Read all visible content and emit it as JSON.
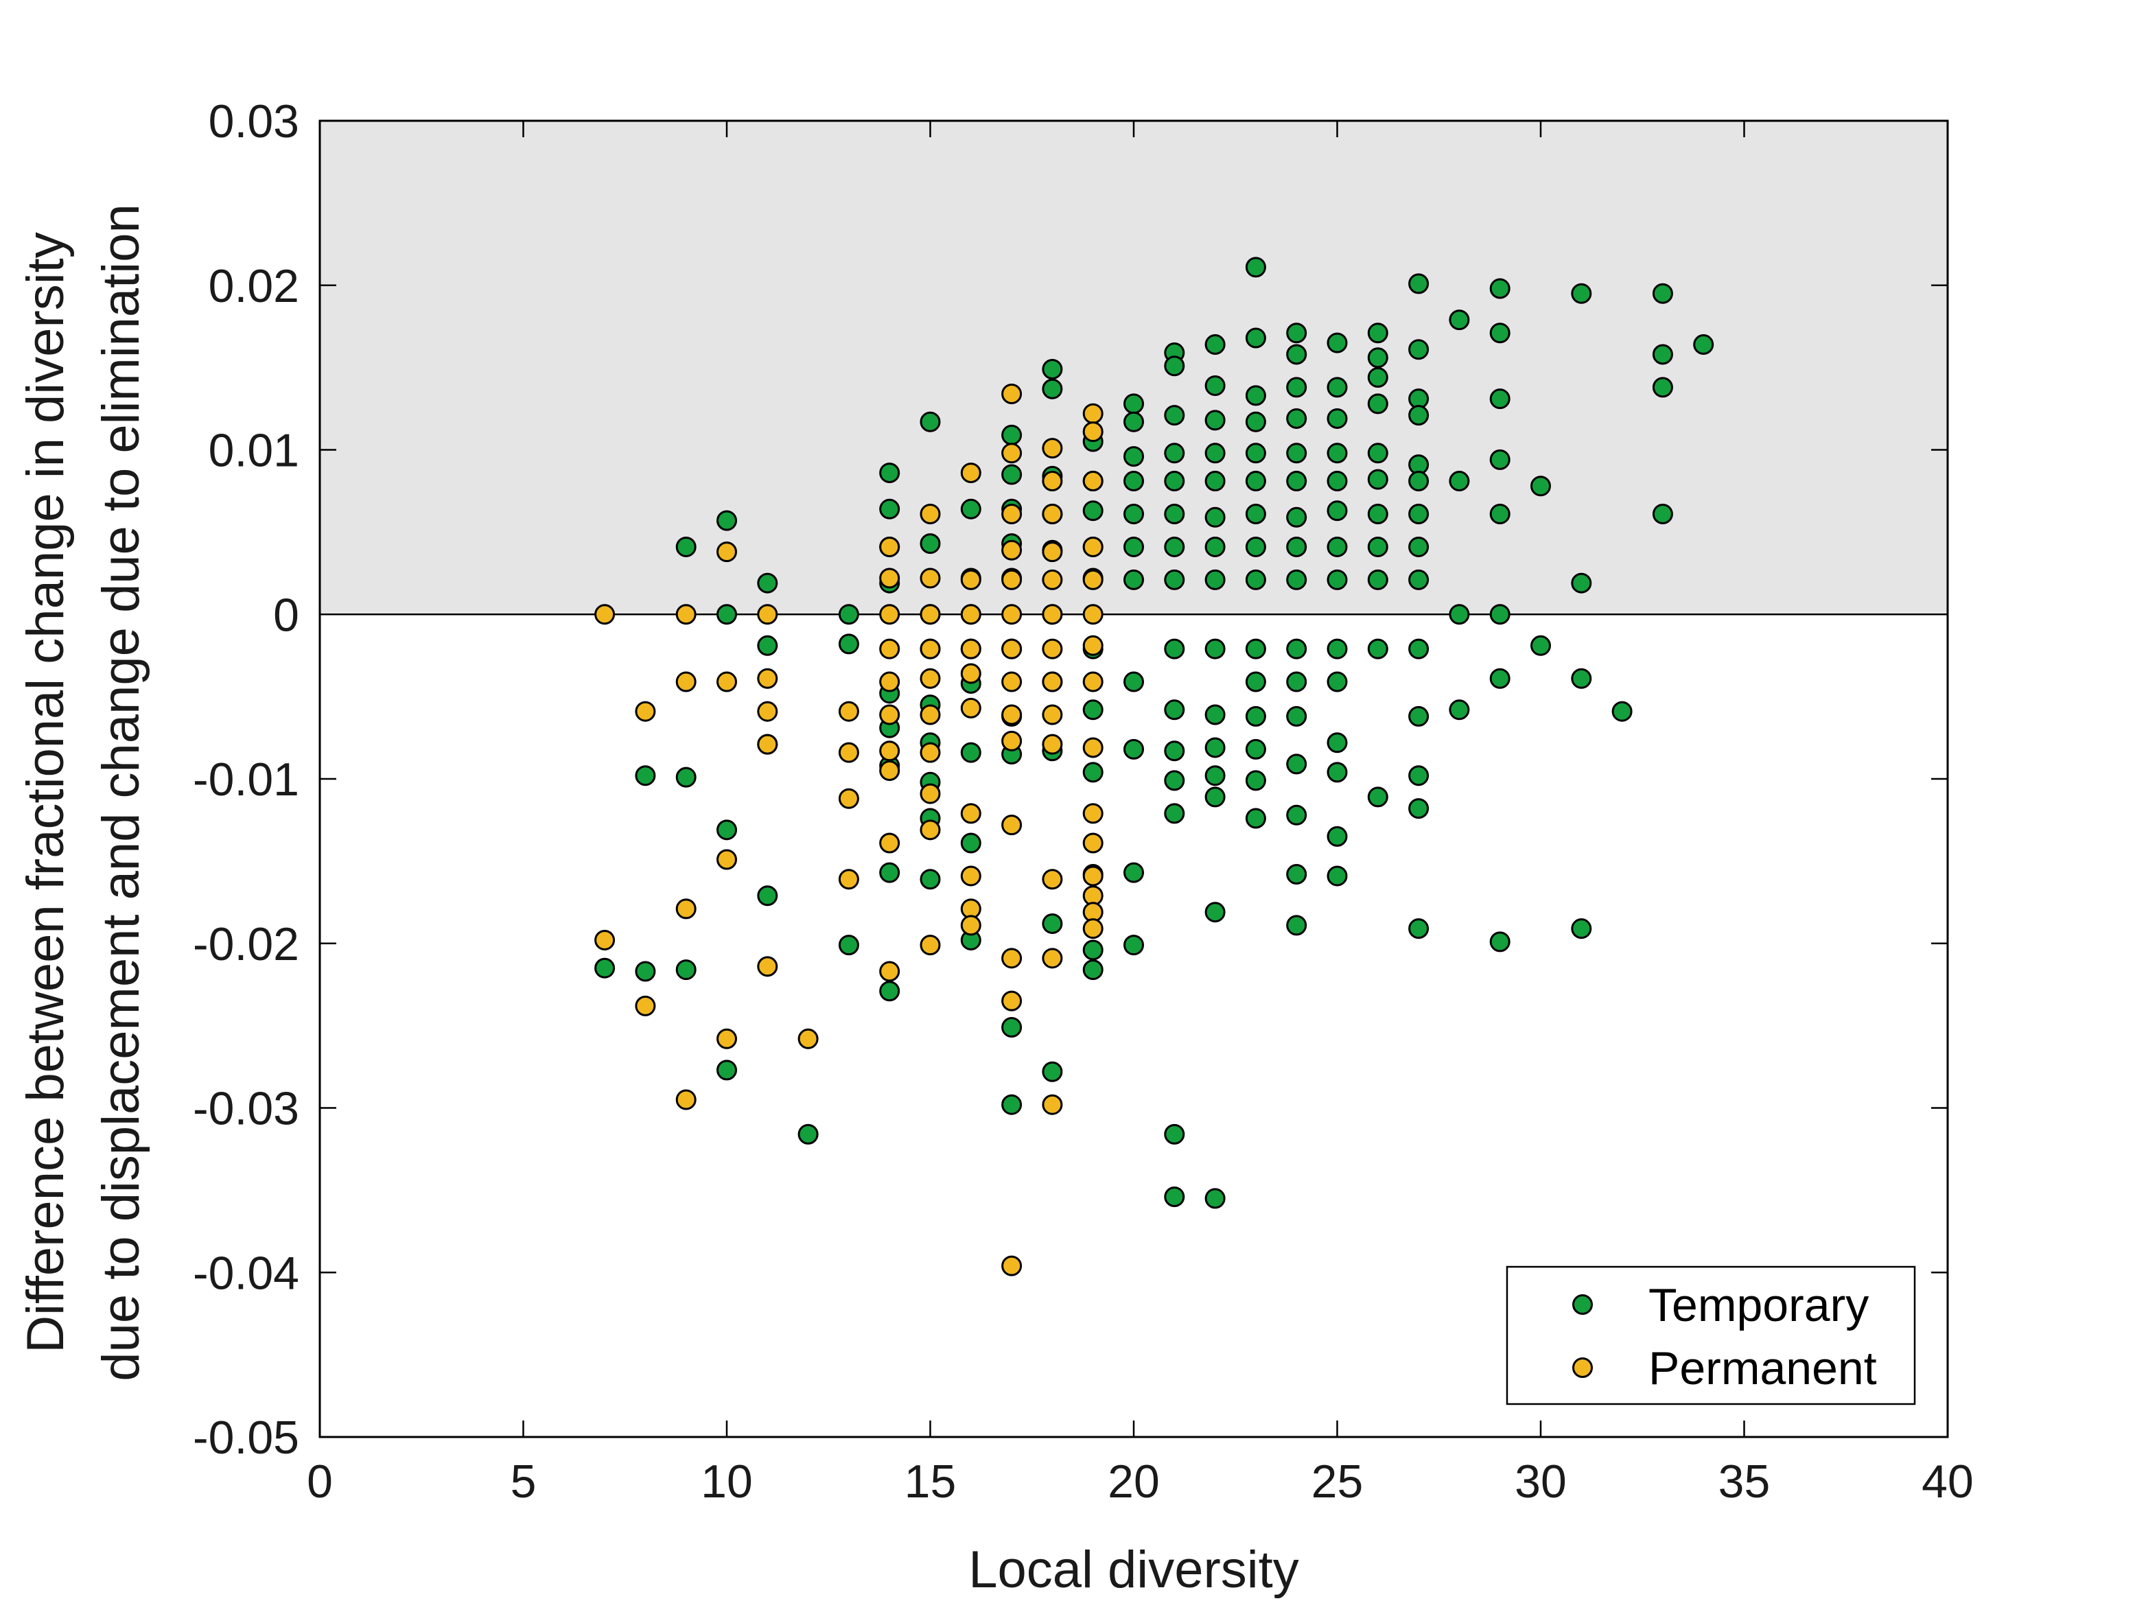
{
  "chart_data": {
    "type": "scatter",
    "title": "",
    "xlabel": "Local diversity",
    "ylabel_lines": [
      "Difference between fractional change in diversity",
      "due to displacement and change due to elimination"
    ],
    "xlim": [
      0,
      40
    ],
    "ylim": [
      -0.05,
      0.03
    ],
    "xticks": [
      0,
      5,
      10,
      15,
      20,
      25,
      30,
      35,
      40
    ],
    "xtick_labels": [
      "0",
      "5",
      "10",
      "15",
      "20",
      "25",
      "30",
      "35",
      "40"
    ],
    "yticks": [
      -0.05,
      -0.04,
      -0.03,
      -0.02,
      -0.01,
      0,
      0.01,
      0.02,
      0.03
    ],
    "ytick_labels": [
      "-0.05",
      "-0.04",
      "-0.03",
      "-0.02",
      "-0.01",
      "0",
      "0.01",
      "0.02",
      "0.03"
    ],
    "shaded_region": {
      "y_from": 0,
      "y_to": 0.03,
      "color": "#e5e5e5"
    },
    "reference_line": {
      "y": 0
    },
    "legend_position": "bottom-right",
    "series": [
      {
        "name": "Temporary",
        "color": "#13a03c",
        "points": [
          [
            7,
            -0.0215
          ],
          [
            8,
            -0.0098
          ],
          [
            8,
            -0.0217
          ],
          [
            9,
            0.0041
          ],
          [
            9,
            -0.0099
          ],
          [
            9,
            -0.0216
          ],
          [
            10,
            0.0057
          ],
          [
            10,
            0.0
          ],
          [
            10,
            -0.0131
          ],
          [
            10,
            -0.0277
          ],
          [
            11,
            0.0019
          ],
          [
            11,
            -0.0019
          ],
          [
            11,
            -0.0079
          ],
          [
            11,
            -0.0171
          ],
          [
            12,
            -0.0316
          ],
          [
            13,
            0.0
          ],
          [
            13,
            -0.0018
          ],
          [
            13,
            -0.0201
          ],
          [
            14,
            0.0086
          ],
          [
            14,
            0.0064
          ],
          [
            14,
            0.0041
          ],
          [
            14,
            0.0019
          ],
          [
            14,
            -0.0048
          ],
          [
            14,
            -0.0069
          ],
          [
            14,
            -0.0092
          ],
          [
            14,
            -0.0157
          ],
          [
            14,
            -0.0229
          ],
          [
            15,
            0.0117
          ],
          [
            15,
            0.0043
          ],
          [
            15,
            0.0
          ],
          [
            15,
            -0.0021
          ],
          [
            15,
            -0.0055
          ],
          [
            15,
            -0.0078
          ],
          [
            15,
            -0.0102
          ],
          [
            15,
            -0.0124
          ],
          [
            15,
            -0.0161
          ],
          [
            16,
            0.0064
          ],
          [
            16,
            0.0022
          ],
          [
            16,
            0.0
          ],
          [
            16,
            -0.0021
          ],
          [
            16,
            -0.0042
          ],
          [
            16,
            -0.0084
          ],
          [
            16,
            -0.0139
          ],
          [
            16,
            -0.0198
          ],
          [
            17,
            0.0109
          ],
          [
            17,
            0.0085
          ],
          [
            17,
            0.0064
          ],
          [
            17,
            0.0043
          ],
          [
            17,
            0.0022
          ],
          [
            17,
            -0.0021
          ],
          [
            17,
            -0.0062
          ],
          [
            17,
            -0.0085
          ],
          [
            17,
            -0.0251
          ],
          [
            17,
            -0.0298
          ],
          [
            18,
            0.0149
          ],
          [
            18,
            0.0137
          ],
          [
            18,
            0.0084
          ],
          [
            18,
            0.0061
          ],
          [
            18,
            0.0039
          ],
          [
            18,
            0.0
          ],
          [
            18,
            -0.0041
          ],
          [
            18,
            -0.0083
          ],
          [
            18,
            -0.0188
          ],
          [
            18,
            -0.0278
          ],
          [
            19,
            0.0105
          ],
          [
            19,
            0.0081
          ],
          [
            19,
            0.0063
          ],
          [
            19,
            0.0041
          ],
          [
            19,
            0.0022
          ],
          [
            19,
            -0.0021
          ],
          [
            19,
            -0.0058
          ],
          [
            19,
            -0.0096
          ],
          [
            19,
            -0.0158
          ],
          [
            19,
            -0.0204
          ],
          [
            19,
            -0.0216
          ],
          [
            20,
            0.0128
          ],
          [
            20,
            0.0117
          ],
          [
            20,
            0.0096
          ],
          [
            20,
            0.0081
          ],
          [
            20,
            0.0061
          ],
          [
            20,
            0.0041
          ],
          [
            20,
            0.0021
          ],
          [
            20,
            -0.0041
          ],
          [
            20,
            -0.0082
          ],
          [
            20,
            -0.0157
          ],
          [
            20,
            -0.0201
          ],
          [
            21,
            0.0159
          ],
          [
            21,
            0.0151
          ],
          [
            21,
            0.0121
          ],
          [
            21,
            0.0098
          ],
          [
            21,
            0.0081
          ],
          [
            21,
            0.0061
          ],
          [
            21,
            0.0041
          ],
          [
            21,
            0.0021
          ],
          [
            21,
            -0.0021
          ],
          [
            21,
            -0.0058
          ],
          [
            21,
            -0.0083
          ],
          [
            21,
            -0.0101
          ],
          [
            21,
            -0.0121
          ],
          [
            21,
            -0.0316
          ],
          [
            21,
            -0.0354
          ],
          [
            22,
            0.0164
          ],
          [
            22,
            0.0139
          ],
          [
            22,
            0.0118
          ],
          [
            22,
            0.0098
          ],
          [
            22,
            0.0081
          ],
          [
            22,
            0.0059
          ],
          [
            22,
            0.0041
          ],
          [
            22,
            0.0021
          ],
          [
            22,
            -0.0021
          ],
          [
            22,
            -0.0061
          ],
          [
            22,
            -0.0081
          ],
          [
            22,
            -0.0098
          ],
          [
            22,
            -0.0111
          ],
          [
            22,
            -0.0181
          ],
          [
            22,
            -0.0355
          ],
          [
            23,
            0.0211
          ],
          [
            23,
            0.0168
          ],
          [
            23,
            0.0133
          ],
          [
            23,
            0.0117
          ],
          [
            23,
            0.0098
          ],
          [
            23,
            0.0081
          ],
          [
            23,
            0.0061
          ],
          [
            23,
            0.0041
          ],
          [
            23,
            0.0021
          ],
          [
            23,
            -0.0021
          ],
          [
            23,
            -0.0041
          ],
          [
            23,
            -0.0062
          ],
          [
            23,
            -0.0082
          ],
          [
            23,
            -0.0101
          ],
          [
            23,
            -0.0124
          ],
          [
            24,
            0.0171
          ],
          [
            24,
            0.0158
          ],
          [
            24,
            0.0138
          ],
          [
            24,
            0.0119
          ],
          [
            24,
            0.0098
          ],
          [
            24,
            0.0081
          ],
          [
            24,
            0.0059
          ],
          [
            24,
            0.0041
          ],
          [
            24,
            0.0021
          ],
          [
            24,
            -0.0021
          ],
          [
            24,
            -0.0041
          ],
          [
            24,
            -0.0062
          ],
          [
            24,
            -0.0091
          ],
          [
            24,
            -0.0122
          ],
          [
            24,
            -0.0158
          ],
          [
            24,
            -0.0189
          ],
          [
            25,
            0.0165
          ],
          [
            25,
            0.0138
          ],
          [
            25,
            0.0119
          ],
          [
            25,
            0.0098
          ],
          [
            25,
            0.0081
          ],
          [
            25,
            0.0063
          ],
          [
            25,
            0.0041
          ],
          [
            25,
            0.0021
          ],
          [
            25,
            -0.0021
          ],
          [
            25,
            -0.0041
          ],
          [
            25,
            -0.0078
          ],
          [
            25,
            -0.0096
          ],
          [
            25,
            -0.0135
          ],
          [
            25,
            -0.0159
          ],
          [
            26,
            0.0171
          ],
          [
            26,
            0.0156
          ],
          [
            26,
            0.0144
          ],
          [
            26,
            0.0128
          ],
          [
            26,
            0.0098
          ],
          [
            26,
            0.0082
          ],
          [
            26,
            0.0061
          ],
          [
            26,
            0.0041
          ],
          [
            26,
            0.0021
          ],
          [
            26,
            -0.0021
          ],
          [
            26,
            -0.0111
          ],
          [
            27,
            0.0201
          ],
          [
            27,
            0.0161
          ],
          [
            27,
            0.0131
          ],
          [
            27,
            0.0121
          ],
          [
            27,
            0.0091
          ],
          [
            27,
            0.0081
          ],
          [
            27,
            0.0061
          ],
          [
            27,
            0.0041
          ],
          [
            27,
            0.0021
          ],
          [
            27,
            -0.0021
          ],
          [
            27,
            -0.0062
          ],
          [
            27,
            -0.0098
          ],
          [
            27,
            -0.0118
          ],
          [
            27,
            -0.0191
          ],
          [
            28,
            0.0179
          ],
          [
            28,
            0.0081
          ],
          [
            28,
            0.0
          ],
          [
            28,
            -0.0058
          ],
          [
            29,
            0.0198
          ],
          [
            29,
            0.0171
          ],
          [
            29,
            0.0131
          ],
          [
            29,
            0.0094
          ],
          [
            29,
            0.0061
          ],
          [
            29,
            0.0
          ],
          [
            29,
            -0.0039
          ],
          [
            29,
            -0.0199
          ],
          [
            30,
            0.0078
          ],
          [
            30,
            -0.0019
          ],
          [
            31,
            0.0195
          ],
          [
            31,
            0.0019
          ],
          [
            31,
            -0.0039
          ],
          [
            31,
            -0.0191
          ],
          [
            32,
            -0.0059
          ],
          [
            33,
            0.0195
          ],
          [
            33,
            0.0158
          ],
          [
            33,
            0.0138
          ],
          [
            33,
            0.0061
          ],
          [
            34,
            0.0164
          ]
        ]
      },
      {
        "name": "Permanent",
        "color": "#f2b71f",
        "points": [
          [
            7,
            0.0
          ],
          [
            7,
            -0.0198
          ],
          [
            8,
            -0.0059
          ],
          [
            8,
            -0.0238
          ],
          [
            9,
            0.0
          ],
          [
            9,
            -0.0041
          ],
          [
            9,
            -0.0179
          ],
          [
            9,
            -0.0295
          ],
          [
            10,
            0.0038
          ],
          [
            10,
            -0.0041
          ],
          [
            10,
            -0.0149
          ],
          [
            10,
            -0.0258
          ],
          [
            11,
            0.0
          ],
          [
            11,
            -0.0039
          ],
          [
            11,
            -0.0059
          ],
          [
            11,
            -0.0079
          ],
          [
            11,
            -0.0214
          ],
          [
            12,
            -0.0258
          ],
          [
            13,
            -0.0059
          ],
          [
            13,
            -0.0084
          ],
          [
            13,
            -0.0112
          ],
          [
            13,
            -0.0161
          ],
          [
            14,
            0.0041
          ],
          [
            14,
            0.0022
          ],
          [
            14,
            0.0
          ],
          [
            14,
            -0.0021
          ],
          [
            14,
            -0.0041
          ],
          [
            14,
            -0.0061
          ],
          [
            14,
            -0.0083
          ],
          [
            14,
            -0.0095
          ],
          [
            14,
            -0.0139
          ],
          [
            14,
            -0.0217
          ],
          [
            15,
            0.0061
          ],
          [
            15,
            0.0022
          ],
          [
            15,
            0.0
          ],
          [
            15,
            -0.0021
          ],
          [
            15,
            -0.0039
          ],
          [
            15,
            -0.0061
          ],
          [
            15,
            -0.0084
          ],
          [
            15,
            -0.0109
          ],
          [
            15,
            -0.0131
          ],
          [
            15,
            -0.0201
          ],
          [
            16,
            0.0086
          ],
          [
            16,
            0.0021
          ],
          [
            16,
            0.0
          ],
          [
            16,
            -0.0021
          ],
          [
            16,
            -0.0036
          ],
          [
            16,
            -0.0057
          ],
          [
            16,
            -0.0121
          ],
          [
            16,
            -0.0159
          ],
          [
            16,
            -0.0179
          ],
          [
            16,
            -0.0189
          ],
          [
            17,
            0.0134
          ],
          [
            17,
            0.0098
          ],
          [
            17,
            0.0061
          ],
          [
            17,
            0.0039
          ],
          [
            17,
            0.0021
          ],
          [
            17,
            0.0
          ],
          [
            17,
            -0.0021
          ],
          [
            17,
            -0.0041
          ],
          [
            17,
            -0.0061
          ],
          [
            17,
            -0.0077
          ],
          [
            17,
            -0.0128
          ],
          [
            17,
            -0.0209
          ],
          [
            17,
            -0.0235
          ],
          [
            17,
            -0.0396
          ],
          [
            18,
            0.0101
          ],
          [
            18,
            0.0081
          ],
          [
            18,
            0.0061
          ],
          [
            18,
            0.0038
          ],
          [
            18,
            0.0021
          ],
          [
            18,
            0.0
          ],
          [
            18,
            -0.0021
          ],
          [
            18,
            -0.0041
          ],
          [
            18,
            -0.0061
          ],
          [
            18,
            -0.0079
          ],
          [
            18,
            -0.0161
          ],
          [
            18,
            -0.0209
          ],
          [
            18,
            -0.0298
          ],
          [
            19,
            0.0122
          ],
          [
            19,
            0.0111
          ],
          [
            19,
            0.0081
          ],
          [
            19,
            0.0041
          ],
          [
            19,
            0.0021
          ],
          [
            19,
            0.0
          ],
          [
            19,
            -0.0019
          ],
          [
            19,
            -0.0041
          ],
          [
            19,
            -0.0081
          ],
          [
            19,
            -0.0121
          ],
          [
            19,
            -0.0139
          ],
          [
            19,
            -0.0159
          ],
          [
            19,
            -0.0171
          ],
          [
            19,
            -0.0181
          ],
          [
            19,
            -0.0191
          ]
        ]
      }
    ]
  },
  "legend": {
    "items": [
      {
        "label": "Temporary",
        "color": "#13a03c"
      },
      {
        "label": "Permanent",
        "color": "#f2b71f"
      }
    ]
  }
}
